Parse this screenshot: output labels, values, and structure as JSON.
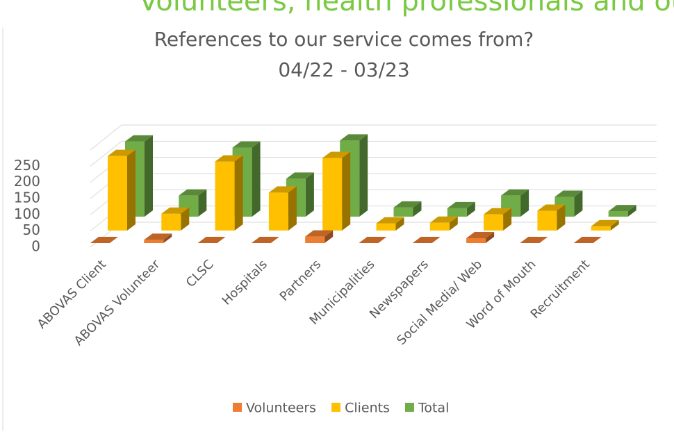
{
  "heading": "Volunteers, health professionals and our p",
  "chart_data": {
    "type": "bar3d",
    "title": "References to our service comes from?",
    "subtitle": "04/22 - 03/23",
    "categories": [
      "ABOVAS Client",
      "ABOVAS Volunteer",
      "CLSC",
      "Hospitals",
      "Partners",
      "Municipalities",
      "Newspapers",
      "Social Media/ Web",
      "Word of Mouth",
      "Recruitment"
    ],
    "series": [
      {
        "name": "Volunteers",
        "color": "#ed7d31",
        "values": [
          0,
          10,
          0,
          0,
          20,
          0,
          0,
          15,
          0,
          0
        ]
      },
      {
        "name": "Clients",
        "color": "#ffc000",
        "values": [
          230,
          52,
          213,
          117,
          224,
          22,
          24,
          50,
          61,
          13
        ]
      },
      {
        "name": "Total",
        "color": "#70ad47",
        "values": [
          232,
          65,
          213,
          117,
          235,
          28,
          26,
          65,
          61,
          17
        ]
      }
    ],
    "ylim": [
      0,
      300
    ],
    "yticks": [
      0,
      50,
      100,
      150,
      200,
      250
    ],
    "grid": true,
    "legend": "bottom"
  }
}
